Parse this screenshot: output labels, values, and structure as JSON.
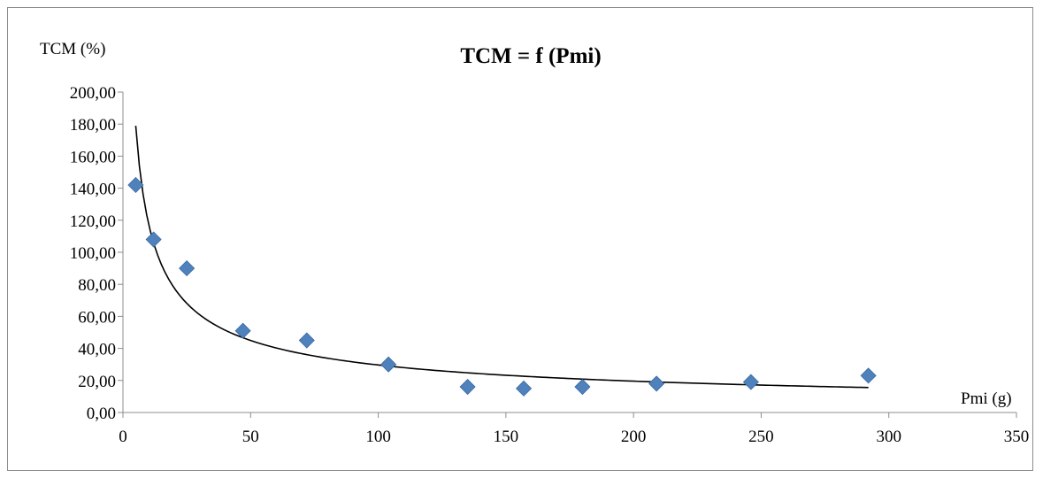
{
  "chart_data": {
    "type": "scatter",
    "title": "TCM = f (Pmi)",
    "ylabel": "TCM  (%)",
    "xlabel": "Pmi  (g)",
    "xlim": [
      0,
      350
    ],
    "ylim": [
      0,
      200
    ],
    "x_ticks": [
      0,
      50,
      100,
      150,
      200,
      250,
      300,
      350
    ],
    "x_tick_labels": [
      "0",
      "50",
      "100",
      "150",
      "200",
      "250",
      "300",
      "350"
    ],
    "y_ticks": [
      0,
      20,
      40,
      60,
      80,
      100,
      120,
      140,
      160,
      180,
      200
    ],
    "y_tick_labels": [
      "0,00",
      "20,00",
      "40,00",
      "60,00",
      "80,00",
      "100,00",
      "120,00",
      "140,00",
      "160,00",
      "180,00",
      "200,00"
    ],
    "grid": false,
    "legend": "none",
    "marker": "diamond",
    "series": [
      {
        "points": [
          {
            "x": 5,
            "y": 142
          },
          {
            "x": 12,
            "y": 108
          },
          {
            "x": 25,
            "y": 90
          },
          {
            "x": 47,
            "y": 51
          },
          {
            "x": 72,
            "y": 45
          },
          {
            "x": 104,
            "y": 30
          },
          {
            "x": 135,
            "y": 16
          },
          {
            "x": 157,
            "y": 15
          },
          {
            "x": 180,
            "y": 16
          },
          {
            "x": 209,
            "y": 18
          },
          {
            "x": 246,
            "y": 19
          },
          {
            "x": 292,
            "y": 23
          }
        ],
        "color": "#4f81bd"
      }
    ],
    "trendline": {
      "type": "power",
      "coefficient": 470,
      "exponent": -0.6,
      "x_range": [
        5,
        292
      ],
      "color": "#000000"
    }
  }
}
